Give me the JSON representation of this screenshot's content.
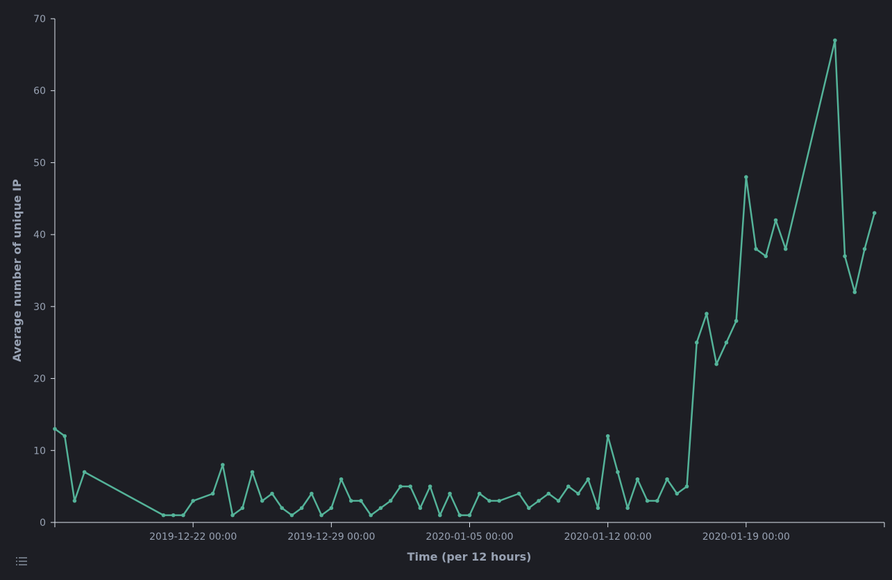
{
  "chart_data": {
    "type": "line",
    "xlabel": "Time (per 12 hours)",
    "ylabel": "Average number of unique IP",
    "xlim": [
      "2019-12-15 00:00",
      "2020-01-26 00:00"
    ],
    "xticks": [
      "2019-12-22 00:00",
      "2019-12-29 00:00",
      "2020-01-05 00:00",
      "2020-01-12 00:00",
      "2020-01-19 00:00"
    ],
    "ylim": [
      0,
      70
    ],
    "yticks": [
      0,
      10,
      20,
      30,
      40,
      50,
      60,
      70
    ],
    "x": [
      "2019-12-15 00:00",
      "2019-12-15 12:00",
      "2019-12-16 00:00",
      "2019-12-16 12:00",
      "2019-12-20 12:00",
      "2019-12-21 00:00",
      "2019-12-21 12:00",
      "2019-12-22 00:00",
      "2019-12-23 00:00",
      "2019-12-23 12:00",
      "2019-12-24 00:00",
      "2019-12-24 12:00",
      "2019-12-25 00:00",
      "2019-12-25 12:00",
      "2019-12-26 00:00",
      "2019-12-26 12:00",
      "2019-12-27 00:00",
      "2019-12-27 12:00",
      "2019-12-28 00:00",
      "2019-12-28 12:00",
      "2019-12-29 00:00",
      "2019-12-29 12:00",
      "2019-12-30 00:00",
      "2019-12-30 12:00",
      "2019-12-31 00:00",
      "2019-12-31 12:00",
      "2020-01-01 00:00",
      "2020-01-01 12:00",
      "2020-01-02 00:00",
      "2020-01-02 12:00",
      "2020-01-03 00:00",
      "2020-01-03 12:00",
      "2020-01-04 00:00",
      "2020-01-04 12:00",
      "2020-01-05 00:00",
      "2020-01-05 12:00",
      "2020-01-06 00:00",
      "2020-01-06 12:00",
      "2020-01-07 12:00",
      "2020-01-08 00:00",
      "2020-01-08 12:00",
      "2020-01-09 00:00",
      "2020-01-09 12:00",
      "2020-01-10 00:00",
      "2020-01-10 12:00",
      "2020-01-11 00:00",
      "2020-01-11 12:00",
      "2020-01-12 00:00",
      "2020-01-12 12:00",
      "2020-01-13 00:00",
      "2020-01-13 12:00",
      "2020-01-14 00:00",
      "2020-01-14 12:00",
      "2020-01-15 00:00",
      "2020-01-15 12:00",
      "2020-01-16 00:00",
      "2020-01-16 12:00",
      "2020-01-17 00:00",
      "2020-01-17 12:00",
      "2020-01-18 00:00",
      "2020-01-18 12:00",
      "2020-01-19 00:00",
      "2020-01-19 12:00",
      "2020-01-20 00:00",
      "2020-01-20 12:00",
      "2020-01-21 00:00",
      "2020-01-23 12:00",
      "2020-01-24 00:00",
      "2020-01-24 12:00",
      "2020-01-25 00:00",
      "2020-01-25 12:00"
    ],
    "series": [
      {
        "name": "Average number of unique IP",
        "color": "#54b399",
        "values": [
          13,
          12,
          3,
          7,
          1,
          1,
          1,
          3,
          4,
          8,
          1,
          2,
          7,
          3,
          4,
          2,
          1,
          2,
          4,
          1,
          2,
          6,
          3,
          3,
          1,
          2,
          3,
          5,
          5,
          2,
          5,
          1,
          4,
          1,
          1,
          4,
          3,
          3,
          4,
          2,
          3,
          4,
          3,
          5,
          4,
          6,
          2,
          12,
          7,
          2,
          6,
          3,
          3,
          6,
          4,
          5,
          25,
          29,
          22,
          25,
          28,
          48,
          38,
          37,
          42,
          38,
          67,
          37,
          32,
          38,
          43
        ]
      }
    ]
  }
}
